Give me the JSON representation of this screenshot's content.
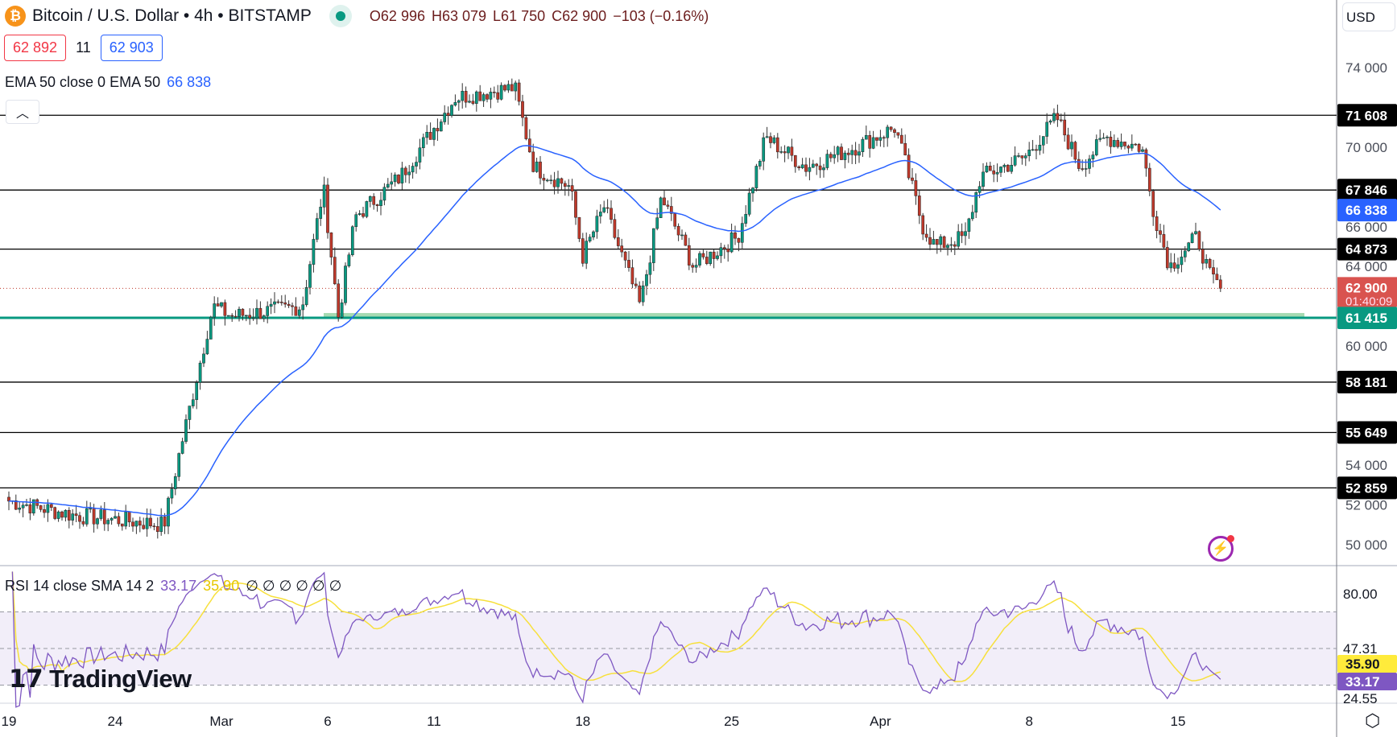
{
  "header": {
    "symbol": "Bitcoin / U.S. Dollar • 4h • BITSTAMP",
    "coin_icon": "₿",
    "open": "O62 996",
    "high": "H63 079",
    "low": "L61 750",
    "close": "C62 900",
    "change": "−103 (−0.16%)"
  },
  "bid_ask": {
    "sell": "62 892",
    "spread": "11",
    "buy": "62 903"
  },
  "ema_legend": {
    "label": "EMA 50 close 0 EMA 50",
    "value": "66 838"
  },
  "currency": "USD",
  "rsi_legend": {
    "label": "RSI 14 close SMA 14 2",
    "rsi": "33.17",
    "sma": "35.90",
    "empties": "∅ ∅ ∅ ∅ ∅ ∅"
  },
  "logo": "TradingView",
  "colors": {
    "up": "#089981",
    "down": "#c0392b",
    "ema": "#2962ff",
    "rsi": "#7e57c2",
    "rsi_sma": "#f7e03c",
    "support": "#089981"
  },
  "chart_data": {
    "type": "candlestick",
    "interval": "4h",
    "price_axis": {
      "min": 49000,
      "max": 75500,
      "ticks": [
        "74 000",
        "70 000",
        "66 000",
        "64 000",
        "60 000",
        "54 000",
        "52 000",
        "50 000"
      ],
      "tick_values": [
        74000,
        70000,
        66000,
        64000,
        60000,
        54000,
        52000,
        50000
      ]
    },
    "time_axis": {
      "labels": [
        "19",
        "24",
        "Mar",
        "6",
        "11",
        "18",
        "25",
        "Apr",
        "8",
        "15"
      ],
      "day_offsets": [
        0,
        5,
        10,
        15,
        20,
        27,
        34,
        41,
        48,
        55
      ]
    },
    "close_anchors_day_price": [
      [
        0,
        52200
      ],
      [
        3,
        51500
      ],
      [
        7.3,
        51000
      ],
      [
        8,
        54500
      ],
      [
        9.6,
        62000
      ],
      [
        10.5,
        61500
      ],
      [
        13.8,
        62000
      ],
      [
        14.8,
        68000
      ],
      [
        15.5,
        61500
      ],
      [
        16.3,
        66500
      ],
      [
        18.4,
        68500
      ],
      [
        21,
        72500
      ],
      [
        23.8,
        73000
      ],
      [
        24.7,
        69000
      ],
      [
        26.4,
        68000
      ],
      [
        27,
        64500
      ],
      [
        28,
        67000
      ],
      [
        29.7,
        62000
      ],
      [
        30.7,
        67500
      ],
      [
        32.2,
        64000
      ],
      [
        34.3,
        65500
      ],
      [
        35.6,
        70500
      ],
      [
        37.5,
        69000
      ],
      [
        39.8,
        70000
      ],
      [
        41.7,
        71000
      ],
      [
        43,
        66000
      ],
      [
        43.6,
        65000
      ],
      [
        45,
        65500
      ],
      [
        45.7,
        68500
      ],
      [
        47.8,
        69500
      ],
      [
        49.3,
        71500
      ],
      [
        50.4,
        69000
      ],
      [
        51.6,
        70500
      ],
      [
        53.3,
        70000
      ],
      [
        53.8,
        67000
      ],
      [
        54.6,
        64000
      ],
      [
        55.9,
        65500
      ],
      [
        56.5,
        63500
      ],
      [
        57,
        62900
      ]
    ],
    "levels": [
      {
        "value": 71608,
        "label": "71 608"
      },
      {
        "value": 67846,
        "label": "67 846"
      },
      {
        "value": 64873,
        "label": "64 873"
      },
      {
        "value": 61415,
        "label": "61 415",
        "support": true
      },
      {
        "value": 58181,
        "label": "58 181"
      },
      {
        "value": 55649,
        "label": "55 649"
      },
      {
        "value": 52859,
        "label": "52 859"
      }
    ],
    "ema": {
      "period": 50,
      "value": 66838,
      "label": "66 838"
    },
    "last_price": {
      "value": 62900,
      "label": "62 900",
      "countdown": "01:40:09"
    },
    "rsi": {
      "period": 14,
      "value": 33.17,
      "sma": 35.9,
      "bands": [
        70,
        50,
        30
      ],
      "ticks": [
        "80.00",
        "47.31",
        "24.55"
      ],
      "tick_values": [
        80,
        47.31,
        24.55
      ]
    }
  }
}
